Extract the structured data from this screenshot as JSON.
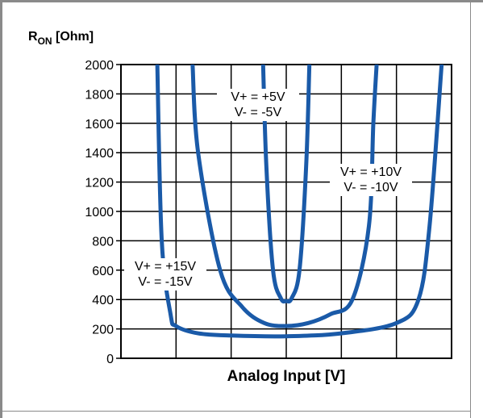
{
  "chart_data": {
    "type": "line",
    "ylabel_main": "R",
    "ylabel_sub": "ON",
    "ylabel_unit": " [Ohm]",
    "xlabel": "Analog Input [V]",
    "ylim": [
      0,
      2000
    ],
    "xlim": [
      -15,
      15
    ],
    "yticks": [
      0,
      200,
      400,
      600,
      800,
      1000,
      1200,
      1400,
      1600,
      1800,
      2000
    ],
    "xgrid": [
      -15,
      -10,
      -5,
      0,
      5,
      10,
      15
    ],
    "grid": true,
    "line_color": "#1a5aa8",
    "series": [
      {
        "annotation": [
          "V+ = +5V",
          "V-  = -5V"
        ],
        "x": [
          -2.1,
          -1.8,
          -1.2,
          -0.5,
          0,
          0.5,
          1.2,
          1.8,
          2.1
        ],
        "y": [
          2000,
          1300,
          600,
          410,
          390,
          410,
          600,
          1300,
          2000
        ]
      },
      {
        "annotation": [
          "V+ = +10V",
          "V-  = -10V"
        ],
        "x": [
          -8.5,
          -8,
          -6,
          -4,
          -2,
          0,
          2,
          4,
          6,
          7.5,
          7.9,
          8.2
        ],
        "y": [
          2000,
          1400,
          600,
          350,
          240,
          220,
          240,
          300,
          400,
          900,
          1600,
          2000
        ]
      },
      {
        "annotation": [
          "V+ = +15V",
          "V-  = -15V"
        ],
        "x": [
          -11.7,
          -11.3,
          -10.5,
          -10,
          -8,
          -5,
          0,
          5,
          10,
          12,
          13,
          14.1
        ],
        "y": [
          2000,
          800,
          300,
          220,
          170,
          155,
          150,
          170,
          240,
          400,
          900,
          2000
        ]
      }
    ]
  }
}
